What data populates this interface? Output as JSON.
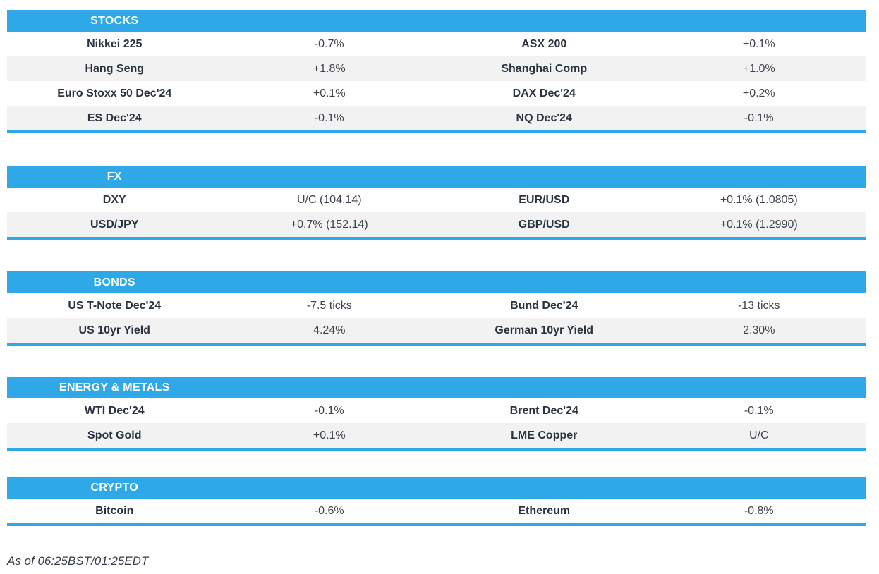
{
  "colors": {
    "accent_blue": "#2FA8E8",
    "row_alt_bg": "#F2F2F2",
    "header_text": "#FFFFFF",
    "label_text": "#2A3340",
    "value_text": "#3C434D"
  },
  "sections": [
    {
      "title": "STOCKS",
      "rows": [
        {
          "cells": [
            "Nikkei 225",
            "-0.7%",
            "ASX 200",
            "+0.1%"
          ]
        },
        {
          "cells": [
            "Hang Seng",
            "+1.8%",
            "Shanghai Comp",
            "+1.0%"
          ]
        },
        {
          "cells": [
            "Euro Stoxx 50 Dec'24",
            "+0.1%",
            "DAX Dec'24",
            "+0.2%"
          ]
        },
        {
          "cells": [
            "ES Dec'24",
            "-0.1%",
            "NQ Dec'24",
            "-0.1%"
          ]
        }
      ]
    },
    {
      "title": "FX",
      "rows": [
        {
          "cells": [
            "DXY",
            "U/C (104.14)",
            "EUR/USD",
            "+0.1% (1.0805)"
          ]
        },
        {
          "cells": [
            "USD/JPY",
            "+0.7% (152.14)",
            "GBP/USD",
            "+0.1% (1.2990)"
          ]
        }
      ]
    },
    {
      "title": "BONDS",
      "rows": [
        {
          "cells": [
            "US T-Note Dec'24",
            "-7.5 ticks",
            "Bund Dec'24",
            "-13 ticks"
          ]
        },
        {
          "cells": [
            "US 10yr Yield",
            "4.24%",
            "German 10yr Yield",
            "2.30%"
          ]
        }
      ]
    },
    {
      "title": "ENERGY & METALS",
      "rows": [
        {
          "cells": [
            "WTI Dec'24",
            "-0.1%",
            "Brent Dec'24",
            "-0.1%"
          ]
        },
        {
          "cells": [
            "Spot Gold",
            "+0.1%",
            "LME Copper",
            "U/C"
          ]
        }
      ]
    },
    {
      "title": "CRYPTO",
      "rows": [
        {
          "cells": [
            "Bitcoin",
            "-0.6%",
            "Ethereum",
            "-0.8%"
          ]
        }
      ]
    }
  ],
  "footer": {
    "as_of": "As of 06:25BST/01:25EDT"
  }
}
